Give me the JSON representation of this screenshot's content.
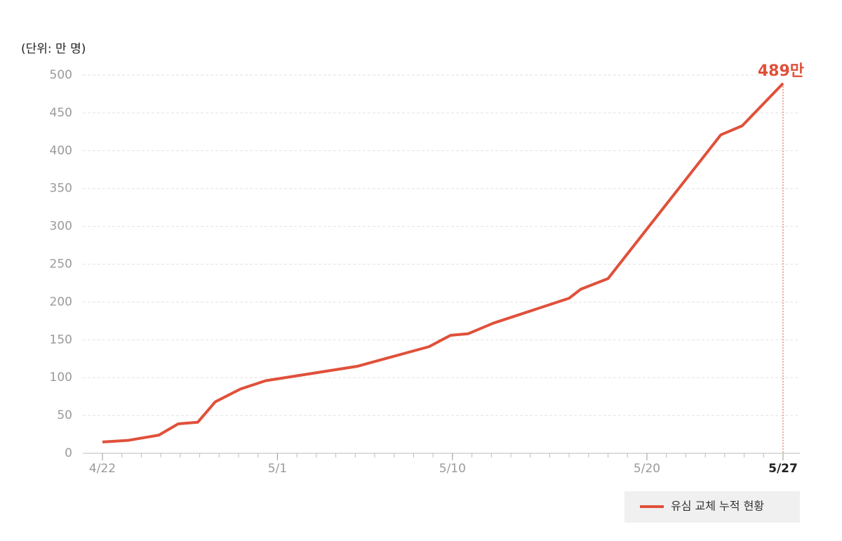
{
  "chart_data": {
    "type": "line",
    "unit_label": "(단위: 만 명)",
    "annotation": "489만",
    "x": [
      0,
      1.3,
      2.9,
      3.9,
      4.9,
      5.8,
      7.1,
      8.4,
      13.1,
      16.8,
      17.9,
      18.8,
      20.1,
      24,
      24.6,
      26,
      31.8,
      32.9,
      35
    ],
    "series": [
      {
        "name": "유심 교체 누적 현황",
        "color": "#e0503a",
        "values": [
          15,
          17,
          24,
          39,
          41,
          68,
          85,
          96,
          115,
          141,
          156,
          158,
          172,
          205,
          217,
          231,
          421,
          433,
          489
        ]
      }
    ],
    "xlim": [
      0,
      35
    ],
    "xticks": [
      {
        "value": 0,
        "label": "4/22"
      },
      {
        "value": 9,
        "label": "5/1"
      },
      {
        "value": 18,
        "label": "5/10"
      },
      {
        "value": 28,
        "label": "5/20"
      },
      {
        "value": 35,
        "label": "5/27"
      }
    ],
    "ylim": [
      0,
      500
    ],
    "yticks": [
      0,
      50,
      100,
      150,
      200,
      250,
      300,
      350,
      400,
      450,
      500
    ],
    "grid": true,
    "legend": "bottom-right"
  }
}
